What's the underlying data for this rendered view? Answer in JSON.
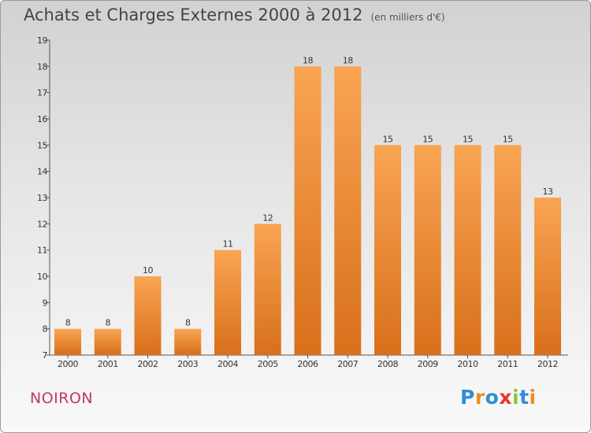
{
  "header": {
    "title": "Achats et Charges Externes 2000 à 2012",
    "unit": "(en milliers d'€)"
  },
  "footer": {
    "commune": "NOIRON",
    "logo_text": "Proxiti",
    "logo_colors": [
      "#2d8fd5",
      "#f08a24",
      "#2d8fd5",
      "#e8352e",
      "#8cc63f",
      "#2d8fd5",
      "#f08a24"
    ]
  },
  "colors": {
    "bar_top": "#f9a552",
    "bar_bottom": "#d86f1b",
    "axis": "#555555",
    "label": "#333333"
  },
  "chart_data": {
    "type": "bar",
    "title": "Achats et Charges Externes 2000 à 2012",
    "subtitle": "(en milliers d'€)",
    "categories": [
      "2000",
      "2001",
      "2002",
      "2003",
      "2004",
      "2005",
      "2006",
      "2007",
      "2008",
      "2009",
      "2010",
      "2011",
      "2012"
    ],
    "values": [
      8,
      8,
      10,
      8,
      11,
      12,
      18,
      18,
      15,
      15,
      15,
      15,
      13
    ],
    "ylim": [
      7,
      19
    ],
    "yticks": [
      7,
      8,
      9,
      10,
      11,
      12,
      13,
      14,
      15,
      16,
      17,
      18,
      19
    ],
    "grid": false,
    "data_labels": true
  }
}
